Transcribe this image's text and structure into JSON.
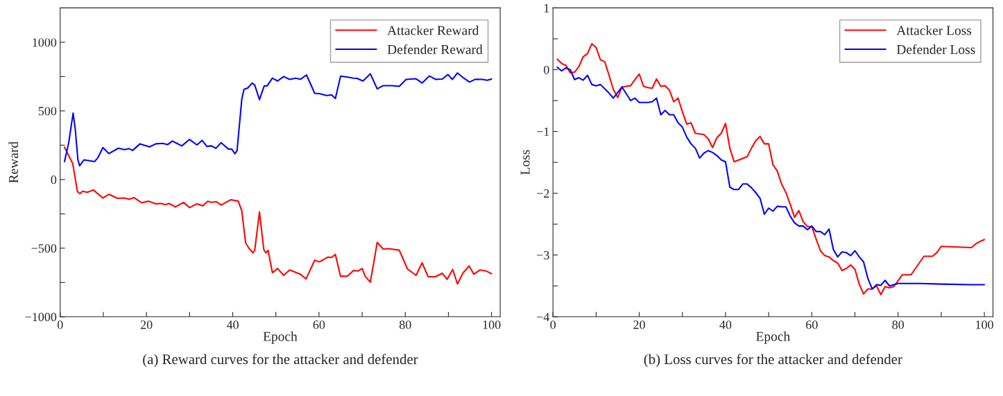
{
  "chart_data": [
    {
      "type": "line",
      "title": "(a) Reward curves for the attacker and defender",
      "xlabel": "Epoch",
      "ylabel": "Reward",
      "xlim": [
        0,
        102
      ],
      "xticks": [
        0,
        {
          "value": 10,
          "label": null
        },
        20,
        {
          "value": 30,
          "label": null
        },
        40,
        {
          "value": 50,
          "label": null
        },
        60,
        {
          "value": 70,
          "label": null
        },
        80,
        {
          "value": 90,
          "label": null
        },
        100
      ],
      "ylim": [
        -1000,
        1250
      ],
      "yticks": [
        {
          "value": -1000,
          "label": "−1000"
        },
        {
          "value": -750,
          "label": null
        },
        {
          "value": -500,
          "label": "−500"
        },
        {
          "value": -250,
          "label": null
        },
        0,
        {
          "value": 250,
          "label": null
        },
        500,
        {
          "value": 750,
          "label": null
        },
        1000
      ],
      "grid": false,
      "legend": "top right",
      "line_style": "solid",
      "marker": "none",
      "series": [
        {
          "name": "Attacker Reward",
          "color": "#ff0000",
          "x": [
            1,
            2.9,
            4,
            4.6,
            5.2,
            6.3,
            7.7,
            9.9,
            11.3,
            13.3,
            14.9,
            16,
            17.1,
            18.9,
            20.5,
            22.2,
            23.3,
            24.4,
            25.3,
            26.7,
            28.6,
            30,
            31.7,
            33.1,
            34.2,
            35.1,
            36.2,
            37.3,
            39.6,
            41.3,
            42.1,
            43,
            43.8,
            44.7,
            45.1,
            46.2,
            47.2,
            47.7,
            48.2,
            49.2,
            50.4,
            51.8,
            53.2,
            55.7,
            57,
            59,
            60.1,
            62.1,
            62.9,
            63.8,
            65,
            66.5,
            68,
            69.1,
            70,
            70.7,
            71.9,
            73.5,
            74.9,
            76,
            78.6,
            80.5,
            82.5,
            83.9,
            85.3,
            87,
            88.6,
            89.7,
            91,
            92.1,
            93.4,
            94.8,
            95.9,
            97.3,
            98.7,
            100
          ],
          "values": [
            235,
            117,
            -88,
            -103,
            -85,
            -93,
            -76,
            -135,
            -108,
            -137,
            -135,
            -143,
            -132,
            -169,
            -158,
            -178,
            -174,
            -183,
            -175,
            -200,
            -167,
            -205,
            -177,
            -192,
            -158,
            -166,
            -161,
            -186,
            -147,
            -158,
            -229,
            -463,
            -502,
            -534,
            -516,
            -236,
            -511,
            -534,
            -516,
            -679,
            -648,
            -698,
            -659,
            -690,
            -724,
            -588,
            -600,
            -565,
            -568,
            -546,
            -705,
            -705,
            -663,
            -666,
            -648,
            -705,
            -748,
            -458,
            -507,
            -503,
            -514,
            -651,
            -698,
            -607,
            -708,
            -708,
            -683,
            -727,
            -655,
            -761,
            -680,
            -630,
            -690,
            -659,
            -666,
            -686
          ]
        },
        {
          "name": "Defender Reward",
          "color": "#0000ff",
          "x": [
            1,
            2,
            3,
            3.5,
            4.1,
            4.5,
            5.5,
            8,
            8.8,
            9.9,
            11.3,
            13.5,
            14.9,
            16,
            16.8,
            18.5,
            20.7,
            22.2,
            23.8,
            24.9,
            26,
            28.2,
            30,
            31.7,
            32.9,
            34,
            35.1,
            36.1,
            37.3,
            39,
            39.8,
            40.5,
            41,
            42.1,
            42.6,
            43.5,
            44.5,
            45.1,
            46.2,
            47.3,
            48,
            49.2,
            50.4,
            51.8,
            53.2,
            54.6,
            55.7,
            57.1,
            59,
            60.1,
            61.8,
            62.9,
            63.8,
            65,
            66.5,
            68,
            68.8,
            70.2,
            71.9,
            73.5,
            74.9,
            76.9,
            78.6,
            80.2,
            82.5,
            83.9,
            85.6,
            87,
            88.6,
            89.9,
            90.9,
            92.1,
            93.4,
            94.9,
            96.2,
            97.9,
            99,
            100
          ],
          "values": [
            131,
            272,
            484,
            366,
            147,
            100,
            143,
            131,
            162,
            233,
            189,
            228,
            218,
            225,
            212,
            260,
            238,
            260,
            263,
            254,
            280,
            245,
            292,
            252,
            285,
            241,
            245,
            227,
            268,
            222,
            221,
            188,
            210,
            585,
            656,
            667,
            703,
            688,
            582,
            682,
            683,
            739,
            718,
            750,
            729,
            738,
            730,
            762,
            628,
            626,
            612,
            617,
            590,
            753,
            747,
            738,
            737,
            718,
            770,
            660,
            684,
            684,
            679,
            729,
            734,
            703,
            754,
            730,
            732,
            765,
            729,
            776,
            742,
            710,
            730,
            729,
            723,
            732
          ]
        }
      ]
    },
    {
      "type": "line",
      "title": "(b) Loss curves for the attacker and defender",
      "xlabel": "Epoch",
      "ylabel": "Loss",
      "xlim": [
        0,
        102
      ],
      "xticks": [
        0,
        {
          "value": 10,
          "label": null
        },
        20,
        {
          "value": 30,
          "label": null
        },
        40,
        {
          "value": 50,
          "label": null
        },
        60,
        {
          "value": 70,
          "label": null
        },
        80,
        {
          "value": 90,
          "label": null
        },
        100
      ],
      "ylim": [
        -4,
        1
      ],
      "yticks": [
        {
          "value": -4,
          "label": "−4"
        },
        {
          "value": -3.5,
          "label": null
        },
        {
          "value": -3,
          "label": "−3"
        },
        {
          "value": -2.5,
          "label": null
        },
        {
          "value": -2,
          "label": "−2"
        },
        {
          "value": -1.5,
          "label": null
        },
        {
          "value": -1,
          "label": "−1"
        },
        {
          "value": -0.5,
          "label": null
        },
        0,
        {
          "value": 0.5,
          "label": null
        },
        1
      ],
      "grid": false,
      "legend": "top right",
      "line_style": "solid",
      "marker": "none",
      "series": [
        {
          "name": "Attacker Loss",
          "color": "#ff0000",
          "x": [
            1,
            2,
            3,
            4,
            5,
            6,
            7,
            8,
            9,
            10,
            11,
            12,
            13,
            14,
            15,
            16,
            17,
            18,
            19,
            20,
            21,
            22,
            23,
            24,
            25,
            26,
            27,
            28,
            29,
            30,
            31,
            32,
            33,
            35,
            36,
            37,
            38,
            39,
            40,
            41,
            42,
            45,
            46,
            47,
            48,
            49,
            50,
            51,
            52,
            53,
            54,
            55,
            56,
            57,
            58,
            59,
            60,
            61,
            62,
            63,
            64,
            65,
            66,
            67,
            68,
            69,
            70,
            71,
            72,
            73,
            74,
            75,
            76,
            77,
            78,
            79,
            81,
            83,
            86,
            88,
            89,
            90,
            97,
            98,
            99,
            100
          ],
          "values": [
            0.17,
            0.1,
            0.07,
            -0.05,
            -0.04,
            0.05,
            0.21,
            0.26,
            0.42,
            0.36,
            0.16,
            0.13,
            -0.09,
            -0.32,
            -0.45,
            -0.28,
            -0.27,
            -0.26,
            -0.16,
            -0.07,
            -0.27,
            -0.29,
            -0.3,
            -0.15,
            -0.27,
            -0.26,
            -0.33,
            -0.52,
            -0.46,
            -0.68,
            -0.88,
            -0.86,
            -1.03,
            -1.05,
            -1.12,
            -1.26,
            -1.1,
            -1.03,
            -0.87,
            -1.27,
            -1.49,
            -1.41,
            -1.27,
            -1.15,
            -1.08,
            -1.2,
            -1.2,
            -1.54,
            -1.64,
            -1.85,
            -1.99,
            -2.18,
            -2.39,
            -2.28,
            -2.46,
            -2.54,
            -2.54,
            -2.74,
            -2.93,
            -3.01,
            -3.03,
            -3.09,
            -3.13,
            -3.25,
            -3.22,
            -3.16,
            -3.23,
            -3.47,
            -3.63,
            -3.55,
            -3.55,
            -3.5,
            -3.64,
            -3.51,
            -3.53,
            -3.51,
            -3.32,
            -3.32,
            -3.02,
            -3.02,
            -2.96,
            -2.86,
            -2.88,
            -2.82,
            -2.78,
            -2.75
          ]
        },
        {
          "name": "Defender Loss",
          "color": "#0000ff",
          "x": [
            1,
            2,
            3,
            4,
            5,
            6,
            7,
            8,
            9,
            10,
            11,
            12,
            13,
            14,
            15,
            16,
            17,
            18,
            19,
            20,
            21,
            22,
            23,
            24,
            25,
            26,
            27,
            28,
            29,
            30,
            31,
            32,
            33,
            34,
            35,
            36,
            37,
            38,
            39,
            40,
            41,
            42,
            43,
            44,
            45,
            46,
            47,
            48,
            49,
            50,
            51,
            52,
            53,
            54,
            55,
            56,
            57,
            58,
            59,
            60,
            61,
            62,
            63,
            64,
            65,
            66,
            67,
            68,
            69,
            70,
            71,
            72,
            73,
            74,
            75,
            76,
            77,
            78,
            79,
            80,
            85,
            90,
            97,
            100
          ],
          "values": [
            0.04,
            -0.02,
            0.03,
            0.0,
            -0.16,
            -0.13,
            -0.17,
            -0.09,
            -0.24,
            -0.26,
            -0.24,
            -0.31,
            -0.38,
            -0.46,
            -0.37,
            -0.28,
            -0.39,
            -0.5,
            -0.46,
            -0.53,
            -0.53,
            -0.53,
            -0.52,
            -0.46,
            -0.73,
            -0.66,
            -0.73,
            -0.73,
            -0.86,
            -0.93,
            -1.09,
            -1.2,
            -1.27,
            -1.43,
            -1.35,
            -1.31,
            -1.34,
            -1.39,
            -1.46,
            -1.49,
            -1.9,
            -1.94,
            -1.94,
            -1.85,
            -1.85,
            -1.91,
            -1.99,
            -2.08,
            -2.34,
            -2.24,
            -2.29,
            -2.21,
            -2.22,
            -2.22,
            -2.37,
            -2.48,
            -2.53,
            -2.53,
            -2.59,
            -2.53,
            -2.62,
            -2.62,
            -2.67,
            -2.58,
            -2.91,
            -3.03,
            -2.95,
            -2.96,
            -3.01,
            -2.93,
            -3.03,
            -3.11,
            -3.38,
            -3.55,
            -3.48,
            -3.49,
            -3.41,
            -3.5,
            -3.48,
            -3.46,
            -3.46,
            -3.47,
            -3.48,
            -3.48
          ]
        }
      ]
    }
  ]
}
